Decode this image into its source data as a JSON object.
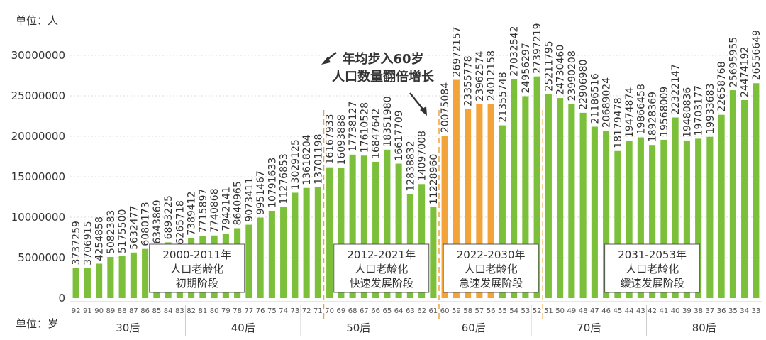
{
  "unit_top": "单位：人",
  "unit_bottom": "单位：岁",
  "annotation": {
    "line1": "年均步入60岁",
    "line2": "人口数量翻倍增长"
  },
  "colors": {
    "green": "#7cbf3a",
    "orange": "#f2a33a",
    "divider": "#f2a33a",
    "grid": "#dddddd",
    "text": "#333333"
  },
  "phases": [
    {
      "years": "2000-2011年",
      "line2": "人口老龄化",
      "line3": "初期阶段"
    },
    {
      "years": "2012-2021年",
      "line2": "人口老龄化",
      "line3": "快速发展阶段"
    },
    {
      "years": "2022-2030年",
      "line2": "人口老龄化",
      "line3": "急速发展阶段"
    },
    {
      "years": "2031-2053年",
      "line2": "人口老龄化",
      "line3": "缓速发展阶段"
    }
  ],
  "chart_data": {
    "type": "bar",
    "ylim": [
      0,
      30000000
    ],
    "yticks": [
      "0",
      "5000000",
      "10000000",
      "15000000",
      "20000000",
      "25000000",
      "30000000"
    ],
    "categories": [
      "92",
      "91",
      "90",
      "89",
      "88",
      "87",
      "86",
      "85",
      "84",
      "83",
      "82",
      "81",
      "80",
      "79",
      "78",
      "77",
      "76",
      "75",
      "74",
      "73",
      "72",
      "71",
      "70",
      "69",
      "68",
      "67",
      "66",
      "65",
      "64",
      "63",
      "62",
      "61",
      "60",
      "59",
      "58",
      "57",
      "56",
      "55",
      "54",
      "53",
      "52",
      "51",
      "50",
      "49",
      "48",
      "47",
      "46",
      "45",
      "44",
      "43",
      "42",
      "41",
      "40",
      "39",
      "38",
      "37",
      "36",
      "35",
      "34",
      "33"
    ],
    "values": [
      3737259,
      3706915,
      4254858,
      5082383,
      5175500,
      5632477,
      6080173,
      6343869,
      6893225,
      6265718,
      7389412,
      7715897,
      7740868,
      7942141,
      8640965,
      9073411,
      9951467,
      10791633,
      11276853,
      13029125,
      13618204,
      13701198,
      16167933,
      16093888,
      17738127,
      17610528,
      16847642,
      18351980,
      16617709,
      12838832,
      14097008,
      11228960,
      20075084,
      26972157,
      23355778,
      23962574,
      24012158,
      21355748,
      27032542,
      24956297,
      27397219,
      25211795,
      24730460,
      23990208,
      22906980,
      21186516,
      20689024,
      18179478,
      19474874,
      19866458,
      18928369,
      19568009,
      22322147,
      19480836,
      19703177,
      19933683,
      22658768,
      25695955,
      24474192,
      26556649
    ],
    "highlight": [
      "60",
      "59",
      "58",
      "57",
      "56"
    ],
    "groups": [
      {
        "label": "30后",
        "from": "92",
        "to": "83"
      },
      {
        "label": "40后",
        "from": "82",
        "to": "73"
      },
      {
        "label": "50后",
        "from": "72",
        "to": "63"
      },
      {
        "label": "60后",
        "from": "62",
        "to": "53"
      },
      {
        "label": "70后",
        "from": "52",
        "to": "43"
      },
      {
        "label": "80后",
        "from": "42",
        "to": "33"
      }
    ]
  }
}
